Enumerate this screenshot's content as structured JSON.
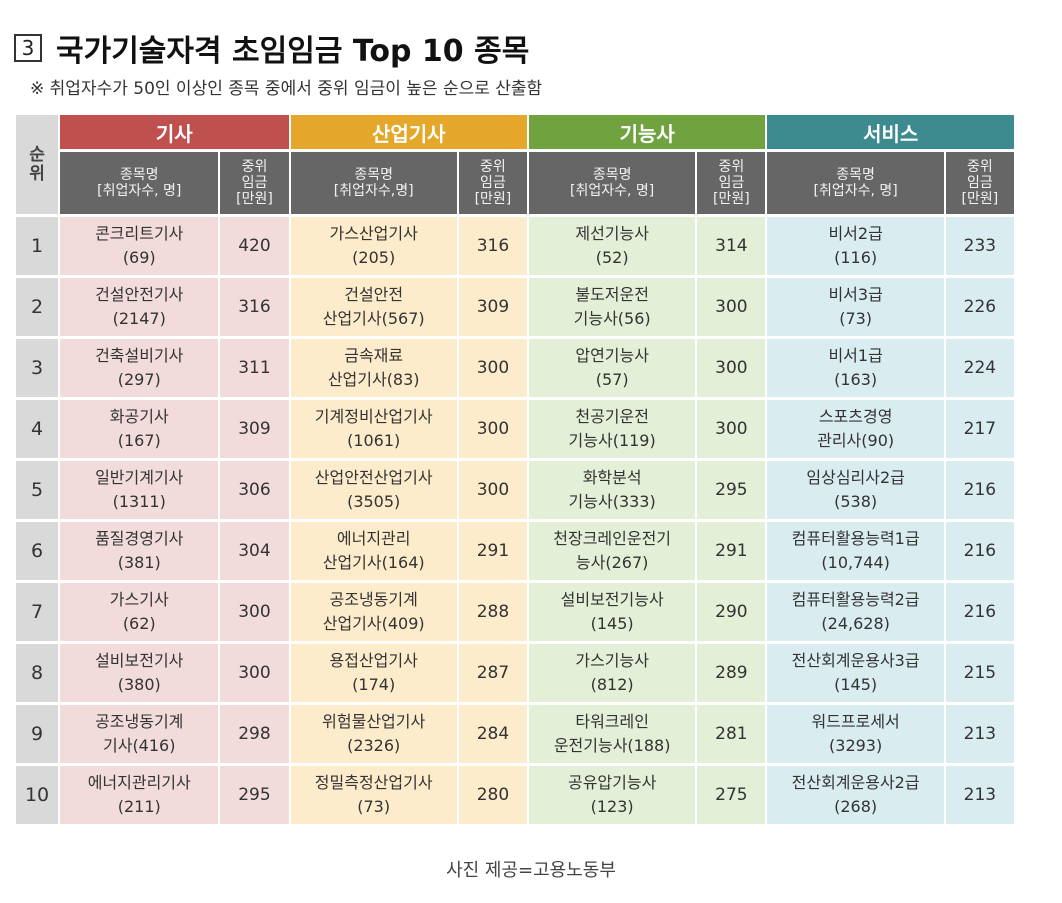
{
  "title": {
    "number": "3",
    "text": "국가기술자격 초임임금 Top 10 종목"
  },
  "note": "※ 취업자수가 50인 이상인 종목 중에서 중위 임금이 높은 순으로 산출함",
  "table": {
    "rank_header": "순\n위",
    "categories": [
      "기사",
      "산업기사",
      "기능사",
      "서비스"
    ],
    "name_header": [
      "종목명\n[취업자수, 명]",
      "종목명\n[취업자수,명]",
      "종목명\n[취업자수, 명]",
      "종목명\n[취업자수, 명]"
    ],
    "pay_header": "중위\n임금\n[만원]",
    "rows": [
      {
        "rank": "1",
        "cells": [
          {
            "name": "콘크리트기사\n(69)",
            "pay": "420"
          },
          {
            "name": "가스산업기사\n(205)",
            "pay": "316"
          },
          {
            "name": "제선기능사\n(52)",
            "pay": "314"
          },
          {
            "name": "비서2급\n(116)",
            "pay": "233"
          }
        ]
      },
      {
        "rank": "2",
        "cells": [
          {
            "name": "건설안전기사\n(2147)",
            "pay": "316"
          },
          {
            "name": "건설안전\n산업기사(567)",
            "pay": "309"
          },
          {
            "name": "불도저운전\n기능사(56)",
            "pay": "300"
          },
          {
            "name": "비서3급\n(73)",
            "pay": "226"
          }
        ]
      },
      {
        "rank": "3",
        "cells": [
          {
            "name": "건축설비기사\n(297)",
            "pay": "311"
          },
          {
            "name": "금속재료\n산업기사(83)",
            "pay": "300"
          },
          {
            "name": "압연기능사\n(57)",
            "pay": "300"
          },
          {
            "name": "비서1급\n(163)",
            "pay": "224"
          }
        ]
      },
      {
        "rank": "4",
        "cells": [
          {
            "name": "화공기사\n(167)",
            "pay": "309"
          },
          {
            "name": "기계정비산업기사\n(1061)",
            "pay": "300"
          },
          {
            "name": "천공기운전\n기능사(119)",
            "pay": "300"
          },
          {
            "name": "스포츠경영\n관리사(90)",
            "pay": "217"
          }
        ]
      },
      {
        "rank": "5",
        "cells": [
          {
            "name": "일반기계기사\n(1311)",
            "pay": "306"
          },
          {
            "name": "산업안전산업기사\n(3505)",
            "pay": "300"
          },
          {
            "name": "화학분석\n기능사(333)",
            "pay": "295"
          },
          {
            "name": "임상심리사2급\n(538)",
            "pay": "216"
          }
        ]
      },
      {
        "rank": "6",
        "cells": [
          {
            "name": "품질경영기사\n(381)",
            "pay": "304"
          },
          {
            "name": "에너지관리\n산업기사(164)",
            "pay": "291"
          },
          {
            "name": "천장크레인운전기\n능사(267)",
            "pay": "291"
          },
          {
            "name": "컴퓨터활용능력1급\n(10,744)",
            "pay": "216"
          }
        ]
      },
      {
        "rank": "7",
        "cells": [
          {
            "name": "가스기사\n(62)",
            "pay": "300"
          },
          {
            "name": "공조냉동기계\n산업기사(409)",
            "pay": "288"
          },
          {
            "name": "설비보전기능사\n(145)",
            "pay": "290"
          },
          {
            "name": "컴퓨터활용능력2급\n(24,628)",
            "pay": "216"
          }
        ]
      },
      {
        "rank": "8",
        "cells": [
          {
            "name": "설비보전기사\n(380)",
            "pay": "300"
          },
          {
            "name": "용접산업기사\n(174)",
            "pay": "287"
          },
          {
            "name": "가스기능사\n(812)",
            "pay": "289"
          },
          {
            "name": "전산회계운용사3급\n(145)",
            "pay": "215"
          }
        ]
      },
      {
        "rank": "9",
        "cells": [
          {
            "name": "공조냉동기계\n기사(416)",
            "pay": "298"
          },
          {
            "name": "위험물산업기사\n(2326)",
            "pay": "284"
          },
          {
            "name": "타워크레인\n운전기능사(188)",
            "pay": "281"
          },
          {
            "name": "워드프로세서\n(3293)",
            "pay": "213"
          }
        ]
      },
      {
        "rank": "10",
        "cells": [
          {
            "name": "에너지관리기사\n(211)",
            "pay": "295"
          },
          {
            "name": "정밀측정산업기사\n(73)",
            "pay": "280"
          },
          {
            "name": "공유압기능사\n(123)",
            "pay": "275"
          },
          {
            "name": "전산회계운용사2급\n(268)",
            "pay": "213"
          }
        ]
      }
    ]
  },
  "caption": "사진 제공=고용노동부",
  "colors": {
    "cat_headers": [
      "#c0504d",
      "#e4a72a",
      "#70a340",
      "#3d8a8f"
    ],
    "cell_fills": [
      "#f2dcdb",
      "#fdeccb",
      "#e3efd6",
      "#d9ecf0"
    ],
    "sub_header": "#666666",
    "rank_fill": "#d9d9d9"
  }
}
